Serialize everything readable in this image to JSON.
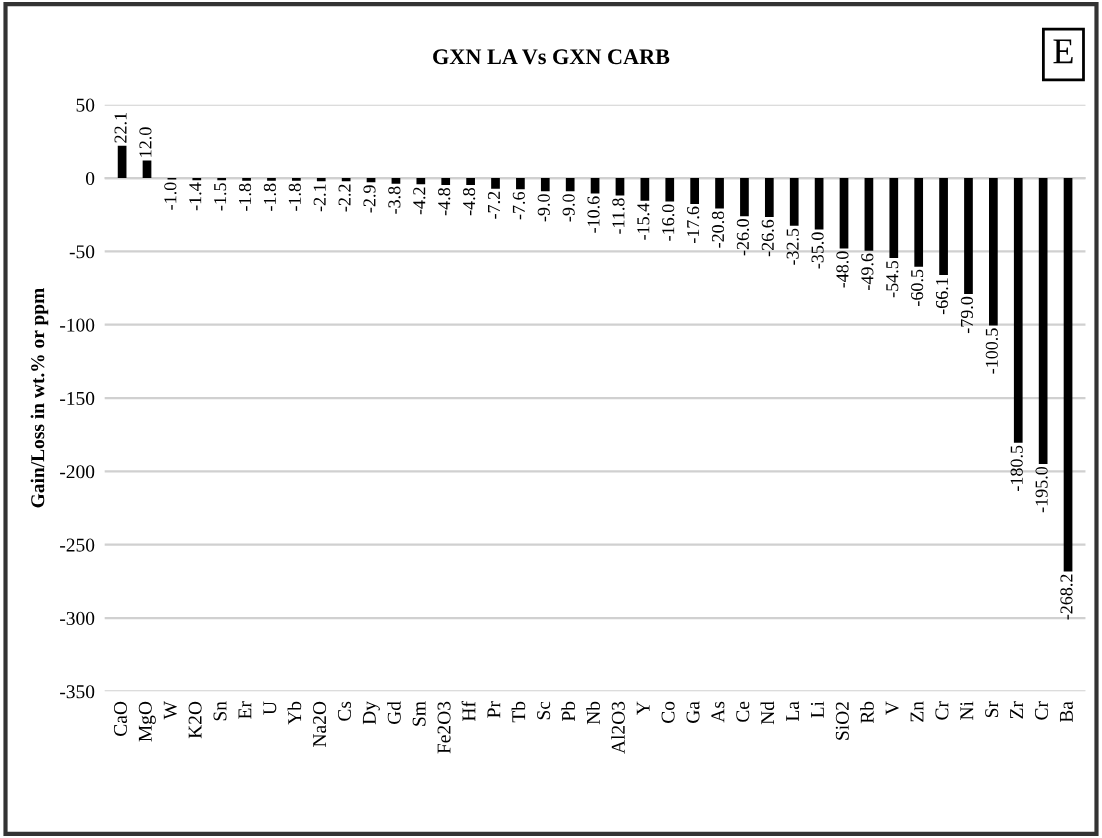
{
  "chart_data": {
    "type": "bar",
    "title": "GXN LA Vs GXN CARB",
    "ylabel": "Gain/Loss in wt.% or ppm",
    "annotations": [
      "E"
    ],
    "categories": [
      "CaO",
      "MgO",
      "W",
      "K2O",
      "Sn",
      "Er",
      "U",
      "Yb",
      "Na2O",
      "Cs",
      "Dy",
      "Gd",
      "Sm",
      "Fe2O3",
      "Hf",
      "Pr",
      "Tb",
      "Sc",
      "Pb",
      "Nb",
      "Al2O3",
      "Y",
      "Co",
      "Ga",
      "As",
      "Ce",
      "Nd",
      "La",
      "Li",
      "SiO2",
      "Rb",
      "V",
      "Zn",
      "Cr",
      "Ni",
      "Sr",
      "Zr",
      "Cr",
      "Ba"
    ],
    "values": [
      22.1,
      12.0,
      -1.0,
      -1.4,
      -1.5,
      -1.8,
      -1.8,
      -1.8,
      -2.1,
      -2.2,
      -2.9,
      -3.8,
      -4.2,
      -4.8,
      -4.8,
      -7.2,
      -7.6,
      -9.0,
      -9.0,
      -10.6,
      -11.8,
      -15.4,
      -16.0,
      -17.6,
      -20.8,
      -26.0,
      -26.6,
      -32.5,
      -35.0,
      -48.0,
      -49.6,
      -54.5,
      -60.5,
      -66.1,
      -79.0,
      -100.5,
      -180.5,
      -195.0,
      -268.2
    ],
    "value_labels": [
      "22.1",
      "12.0",
      "-1.0",
      "-1.4",
      "-1.5",
      "-1.8",
      "-1.8",
      "-1.8",
      "-2.1",
      "-2.2",
      "-2.9",
      "-3.8",
      "-4.2",
      "-4.8",
      "-4.8",
      "-7.2",
      "-7.6",
      "-9.0",
      "-9.0",
      "-10.6",
      "-11.8",
      "-15.4",
      "-16.0",
      "-17.6",
      "-20.8",
      "-26.0",
      "-26.6",
      "-32.5",
      "-35.0",
      "-48.0",
      "-49.6",
      "-54.5",
      "-60.5",
      "-66.1",
      "-79.0",
      "-100.5",
      "-180.5",
      "-195.0",
      "-268.2"
    ],
    "color": "#000000",
    "ylim": [
      -350,
      50
    ],
    "yticks": [
      -350,
      -300,
      -250,
      -200,
      -150,
      -100,
      -50,
      0,
      50
    ],
    "grid": "y"
  }
}
